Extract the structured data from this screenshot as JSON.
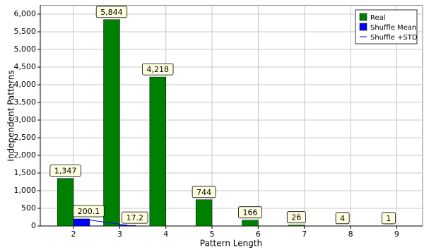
{
  "chart_data": {
    "type": "bar",
    "xlabel": "Pattern Length",
    "ylabel": "Independent Patterns",
    "x": [
      2,
      3,
      4,
      5,
      6,
      7,
      8,
      9
    ],
    "series": [
      {
        "name": "Real",
        "color": "#008000",
        "values": [
          1347,
          5844,
          4218,
          744,
          166,
          26,
          4,
          1
        ],
        "value_labels": [
          "1,347",
          "5,844",
          "4,218",
          "744",
          "166",
          "26",
          "4",
          "1"
        ]
      },
      {
        "name": "Shuffle Mean",
        "color": "#0000ff",
        "values": [
          200.1,
          17.2,
          null,
          null,
          null,
          null,
          null,
          null
        ]
      },
      {
        "name": "Shuffle +STD",
        "color": "#0000ff",
        "type": "line",
        "values": [
          200,
          20,
          null,
          null,
          null,
          null,
          null,
          null
        ]
      }
    ],
    "xlim": [
      1.28,
      9.56
    ],
    "xticks": [
      2,
      3,
      4,
      5,
      6,
      7,
      8,
      9
    ],
    "ylim": [
      0,
      6250
    ],
    "yticks": [
      0,
      {
        "value": 500,
        "label": "500"
      },
      {
        "value": 1000,
        "label": "1,000"
      },
      {
        "value": 1500,
        "label": "1,500"
      },
      {
        "value": 2000,
        "label": "2,000"
      },
      {
        "value": 2500,
        "label": "2,500"
      },
      {
        "value": 3000,
        "label": "3,000"
      },
      {
        "value": 3500,
        "label": "3,500"
      },
      {
        "value": 4000,
        "label": "4,000"
      },
      {
        "value": 4500,
        "label": "4,500"
      },
      {
        "value": 5000,
        "label": "5,000"
      },
      {
        "value": 5500,
        "label": "5,500"
      },
      {
        "value": 6000,
        "label": "6,000"
      }
    ],
    "grid": true,
    "legend": "upper right"
  }
}
